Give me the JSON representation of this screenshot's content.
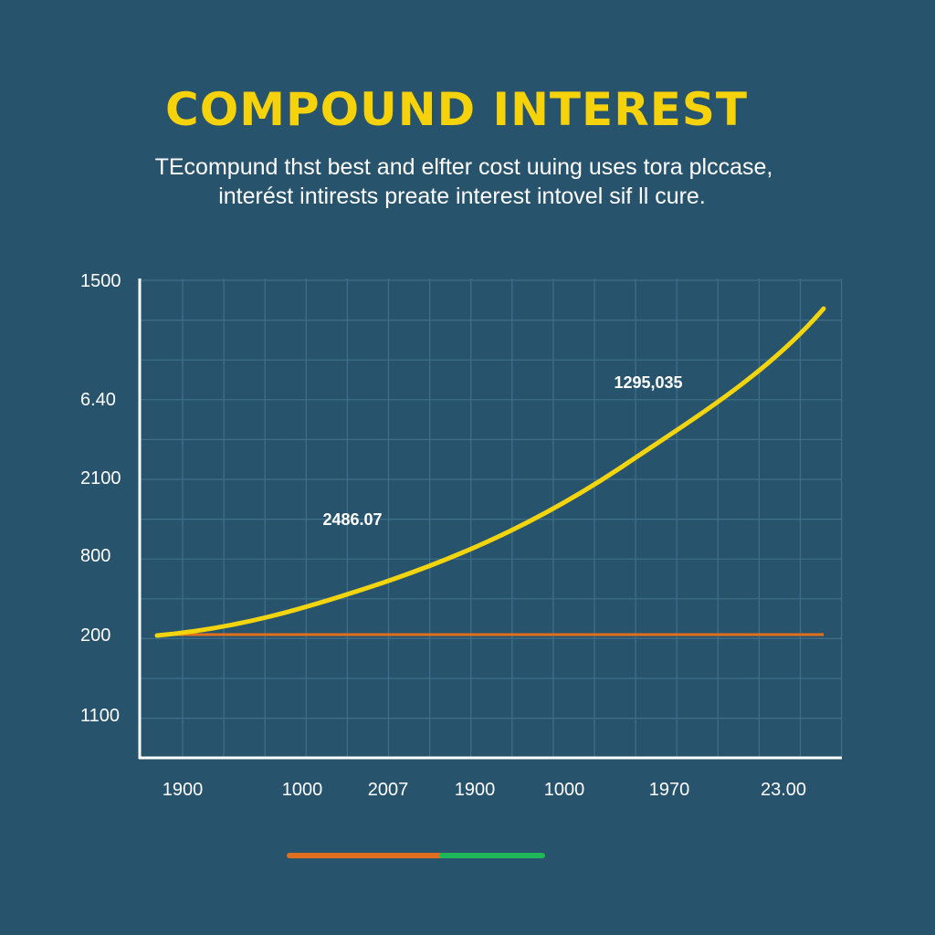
{
  "title": "COMPOUND INTEREST",
  "subtitle": [
    "TEcompund thst best and elfter cost uuing uses tora plccase,",
    "interést intirests preate interest intovel sif ll cure."
  ],
  "y_axis_labels": [
    "1500",
    "6.40",
    "2100",
    "800",
    "200",
    "1100"
  ],
  "x_axis_labels": [
    "1900",
    "1000",
    "2007",
    "1900",
    "1000",
    "1970",
    "23.00"
  ],
  "annotations": [
    "1295,035",
    "2486.07"
  ]
}
